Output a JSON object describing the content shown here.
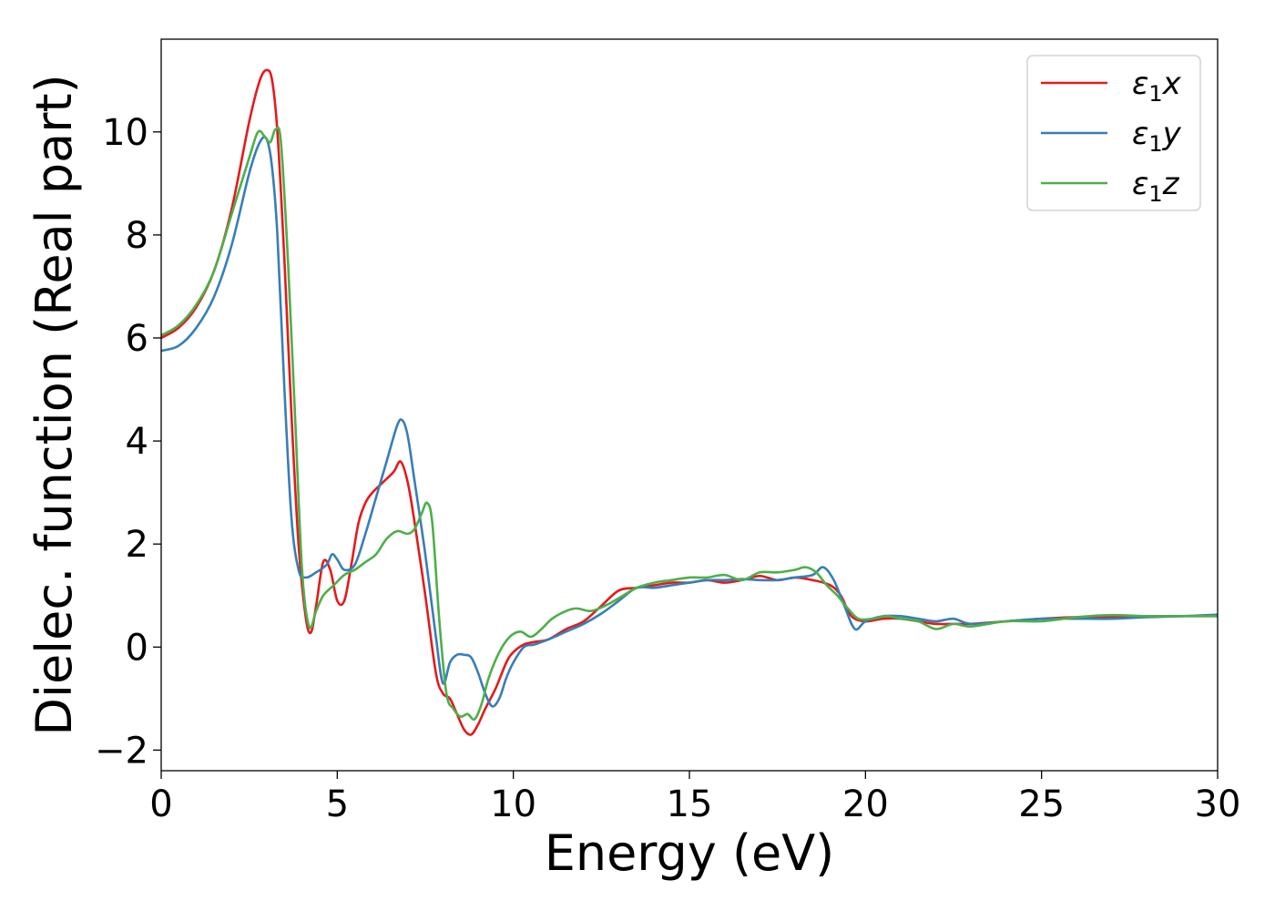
{
  "chart_data": {
    "type": "line",
    "title": "",
    "xlabel": "Energy (eV)",
    "ylabel": "Dielec. function (Real part)",
    "xlim": [
      0,
      30
    ],
    "ylim": [
      -2.4,
      11.8
    ],
    "xticks": [
      0,
      5,
      10,
      15,
      20,
      25,
      30
    ],
    "yticks": [
      -2,
      0,
      2,
      4,
      6,
      8,
      10
    ],
    "xtick_labels": [
      "0",
      "5",
      "10",
      "15",
      "20",
      "25",
      "30"
    ],
    "ytick_labels": [
      "−2",
      "0",
      "2",
      "4",
      "6",
      "8",
      "10"
    ],
    "grid": false,
    "legend_position": "top-right",
    "series": [
      {
        "name_base": "ε",
        "name_sub": "1",
        "name_suffix": "x",
        "color": "#e41a1c",
        "x": [
          0,
          0.5,
          1,
          1.5,
          2,
          2.5,
          2.8,
          3.0,
          3.15,
          3.3,
          3.5,
          3.7,
          3.9,
          4.1,
          4.25,
          4.4,
          4.6,
          4.8,
          5.0,
          5.2,
          5.4,
          5.6,
          5.8,
          6.0,
          6.3,
          6.6,
          6.8,
          7.0,
          7.2,
          7.5,
          7.8,
          8.0,
          8.2,
          8.4,
          8.6,
          8.8,
          9.0,
          9.2,
          9.5,
          9.8,
          10.0,
          10.3,
          10.6,
          11.0,
          11.5,
          12.0,
          12.5,
          13.0,
          13.5,
          14.0,
          14.5,
          15.0,
          15.5,
          16.0,
          16.5,
          17.0,
          17.5,
          18.0,
          18.5,
          19.0,
          19.3,
          19.6,
          20.0,
          20.5,
          21.0,
          21.5,
          22.0,
          22.5,
          23.0,
          24.0,
          25.0,
          26.0,
          27.0,
          28.0,
          29.0,
          30.0
        ],
        "y": [
          6.0,
          6.2,
          6.6,
          7.3,
          8.5,
          10.2,
          11.0,
          11.2,
          11.0,
          10.0,
          7.5,
          4.5,
          2.0,
          0.6,
          0.28,
          0.8,
          1.65,
          1.5,
          0.9,
          0.9,
          1.6,
          2.4,
          2.8,
          3.0,
          3.2,
          3.4,
          3.6,
          3.2,
          2.4,
          1.0,
          -0.5,
          -0.9,
          -1.0,
          -1.3,
          -1.6,
          -1.7,
          -1.5,
          -1.2,
          -0.8,
          -0.3,
          -0.1,
          0.05,
          0.1,
          0.15,
          0.35,
          0.5,
          0.8,
          1.1,
          1.15,
          1.2,
          1.25,
          1.25,
          1.3,
          1.25,
          1.3,
          1.38,
          1.3,
          1.35,
          1.3,
          1.2,
          1.0,
          0.6,
          0.5,
          0.55,
          0.55,
          0.5,
          0.45,
          0.45,
          0.45,
          0.5,
          0.55,
          0.58,
          0.58,
          0.6,
          0.6,
          0.6
        ]
      },
      {
        "name_base": "ε",
        "name_sub": "1",
        "name_suffix": "y",
        "color": "#377eb8",
        "x": [
          0,
          0.5,
          1,
          1.5,
          2,
          2.5,
          2.8,
          3.0,
          3.15,
          3.3,
          3.5,
          3.7,
          3.9,
          4.1,
          4.4,
          4.7,
          4.85,
          5.0,
          5.2,
          5.5,
          5.8,
          6.1,
          6.4,
          6.7,
          6.85,
          7.0,
          7.2,
          7.5,
          7.8,
          8.0,
          8.2,
          8.4,
          8.6,
          8.8,
          9.0,
          9.2,
          9.4,
          9.6,
          9.8,
          10.0,
          10.3,
          10.6,
          11.0,
          11.5,
          12.0,
          12.5,
          13.0,
          13.5,
          14.0,
          14.5,
          15.0,
          15.5,
          16.0,
          16.5,
          17.0,
          17.5,
          18.0,
          18.5,
          18.8,
          19.1,
          19.4,
          19.7,
          20.0,
          20.5,
          21.0,
          21.5,
          22.0,
          22.5,
          23.0,
          24.0,
          25.0,
          26.0,
          27.0,
          28.0,
          29.0,
          30.0
        ],
        "y": [
          5.75,
          5.85,
          6.2,
          6.8,
          7.8,
          9.2,
          9.8,
          9.85,
          9.3,
          8.0,
          5.0,
          2.5,
          1.5,
          1.35,
          1.45,
          1.6,
          1.8,
          1.7,
          1.5,
          1.6,
          2.2,
          2.9,
          3.6,
          4.3,
          4.4,
          4.1,
          3.2,
          1.8,
          0.2,
          -0.7,
          -0.3,
          -0.15,
          -0.15,
          -0.2,
          -0.5,
          -0.9,
          -1.15,
          -1.0,
          -0.6,
          -0.3,
          0.0,
          0.05,
          0.15,
          0.3,
          0.45,
          0.65,
          0.9,
          1.15,
          1.15,
          1.2,
          1.25,
          1.3,
          1.3,
          1.32,
          1.3,
          1.3,
          1.35,
          1.4,
          1.55,
          1.3,
          0.8,
          0.35,
          0.5,
          0.6,
          0.6,
          0.55,
          0.5,
          0.55,
          0.45,
          0.5,
          0.55,
          0.55,
          0.55,
          0.58,
          0.6,
          0.63
        ]
      },
      {
        "name_base": "ε",
        "name_sub": "1",
        "name_suffix": "z",
        "color": "#4daf4a",
        "x": [
          0,
          0.5,
          1,
          1.5,
          2,
          2.5,
          2.75,
          2.95,
          3.1,
          3.25,
          3.4,
          3.6,
          3.8,
          4.0,
          4.2,
          4.4,
          4.6,
          4.9,
          5.2,
          5.5,
          5.8,
          6.1,
          6.4,
          6.7,
          7.0,
          7.2,
          7.4,
          7.55,
          7.7,
          7.9,
          8.1,
          8.3,
          8.5,
          8.7,
          8.9,
          9.1,
          9.3,
          9.6,
          9.9,
          10.2,
          10.5,
          10.8,
          11.1,
          11.5,
          11.8,
          12.2,
          12.6,
          13.0,
          13.5,
          14.0,
          14.5,
          15.0,
          15.5,
          16.0,
          16.5,
          17.0,
          17.5,
          18.0,
          18.3,
          18.6,
          18.9,
          19.2,
          19.5,
          19.8,
          20.2,
          20.6,
          21.0,
          21.5,
          22.0,
          22.5,
          23.0,
          24.0,
          25.0,
          26.0,
          27.0,
          28.0,
          29.0,
          30.0
        ],
        "y": [
          6.05,
          6.25,
          6.65,
          7.3,
          8.4,
          9.5,
          10.0,
          9.9,
          9.8,
          10.05,
          9.8,
          7.5,
          4.5,
          1.5,
          0.4,
          0.7,
          1.0,
          1.2,
          1.4,
          1.5,
          1.65,
          1.8,
          2.1,
          2.25,
          2.2,
          2.3,
          2.6,
          2.8,
          2.4,
          0.5,
          -0.9,
          -1.2,
          -1.35,
          -1.3,
          -1.4,
          -1.1,
          -0.6,
          -0.1,
          0.2,
          0.3,
          0.2,
          0.35,
          0.55,
          0.7,
          0.75,
          0.7,
          0.8,
          0.95,
          1.15,
          1.25,
          1.3,
          1.35,
          1.35,
          1.4,
          1.3,
          1.45,
          1.45,
          1.5,
          1.55,
          1.45,
          1.2,
          1.0,
          0.75,
          0.55,
          0.55,
          0.6,
          0.55,
          0.5,
          0.35,
          0.45,
          0.4,
          0.5,
          0.5,
          0.58,
          0.62,
          0.6,
          0.6,
          0.6
        ]
      }
    ]
  }
}
